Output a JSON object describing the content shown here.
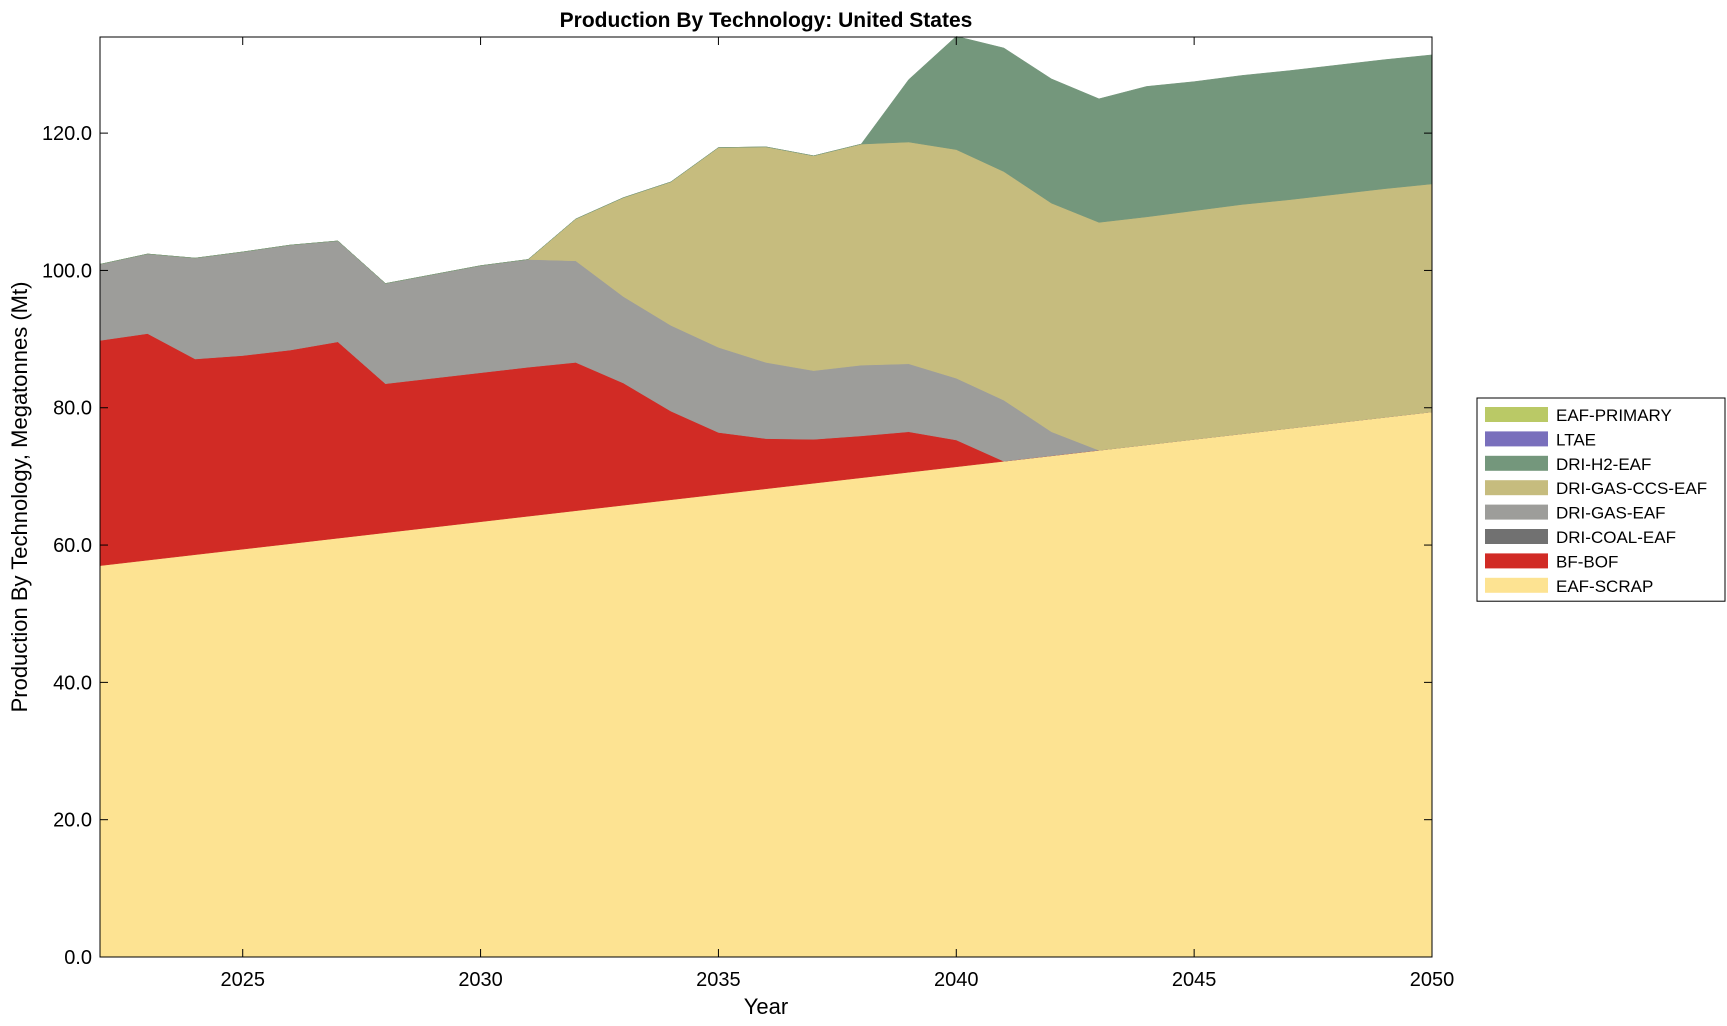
{
  "chart_data": {
    "type": "area",
    "stacked": true,
    "title": "Production By Technology: United States",
    "xlabel": "Year",
    "ylabel": "Production By Technology, Megatonnes (Mt)",
    "xlim": [
      2022,
      2050
    ],
    "ylim": [
      0,
      134
    ],
    "x_ticks": [
      2025,
      2030,
      2035,
      2040,
      2045,
      2050
    ],
    "y_ticks": [
      0,
      20,
      40,
      60,
      80,
      100,
      120
    ],
    "y_tick_labels": [
      "0.0",
      "20.0",
      "40.0",
      "60.0",
      "80.0",
      "100.0",
      "120.0"
    ],
    "grid": false,
    "legend_position": "right",
    "x": [
      2022,
      2023,
      2024,
      2025,
      2026,
      2027,
      2028,
      2029,
      2030,
      2031,
      2032,
      2033,
      2034,
      2035,
      2036,
      2037,
      2038,
      2039,
      2040,
      2041,
      2042,
      2043,
      2044,
      2045,
      2046,
      2047,
      2048,
      2049,
      2050
    ],
    "series": [
      {
        "name": "EAF-SCRAP",
        "color": "#fde392",
        "values": [
          57.0,
          57.8,
          58.6,
          59.4,
          60.2,
          61.0,
          61.8,
          62.6,
          63.4,
          64.2,
          65.0,
          65.8,
          66.6,
          67.4,
          68.2,
          69.0,
          69.8,
          70.6,
          71.4,
          72.2,
          73.0,
          73.8,
          74.6,
          75.4,
          76.2,
          77.0,
          77.8,
          78.6,
          79.4
        ]
      },
      {
        "name": "BF-BOF",
        "color": "#d12b25",
        "values": [
          32.8,
          33.0,
          28.5,
          28.2,
          28.2,
          28.6,
          21.7,
          21.7,
          21.7,
          21.7,
          21.6,
          17.8,
          12.9,
          9.0,
          7.3,
          6.4,
          6.1,
          5.9,
          3.9,
          0.0,
          0.0,
          0.0,
          0.0,
          0.0,
          0.0,
          0.0,
          0.0,
          0.0,
          0.0
        ]
      },
      {
        "name": "DRI-COAL-EAF",
        "color": "#717171",
        "values": [
          0,
          0,
          0,
          0,
          0,
          0,
          0,
          0,
          0,
          0,
          0,
          0,
          0,
          0,
          0,
          0,
          0,
          0,
          0,
          0,
          0,
          0,
          0,
          0,
          0,
          0,
          0,
          0,
          0
        ]
      },
      {
        "name": "DRI-GAS-EAF",
        "color": "#9d9d9a",
        "values": [
          11.1,
          11.6,
          14.7,
          15.1,
          15.3,
          14.7,
          14.6,
          15.1,
          15.6,
          15.7,
          14.8,
          12.6,
          12.5,
          12.4,
          11.1,
          10.0,
          10.3,
          9.9,
          9.0,
          8.9,
          3.5,
          0.0,
          0.0,
          0.0,
          0.0,
          0.0,
          0.0,
          0.0,
          0.0
        ]
      },
      {
        "name": "DRI-GAS-CCS-EAF",
        "color": "#c6bc7e",
        "values": [
          0.0,
          0.0,
          0.0,
          0.0,
          0.0,
          0.0,
          0.0,
          0.0,
          0.0,
          0.0,
          6.1,
          14.4,
          20.9,
          29.1,
          31.4,
          31.3,
          32.2,
          32.3,
          33.3,
          33.3,
          33.3,
          33.2,
          33.2,
          33.3,
          33.4,
          33.3,
          33.3,
          33.3,
          33.2
        ]
      },
      {
        "name": "DRI-H2-EAF",
        "color": "#74977c",
        "values": [
          0.0,
          0.0,
          0.0,
          0.0,
          0.0,
          0.0,
          0.0,
          0.0,
          0.0,
          0.0,
          0.0,
          0.0,
          0.0,
          0.0,
          0.0,
          0.0,
          0.0,
          9.1,
          16.5,
          18.0,
          18.1,
          18.0,
          19.0,
          18.8,
          18.8,
          18.8,
          18.8,
          18.8,
          18.8
        ]
      },
      {
        "name": "LTAE",
        "color": "#796fbc",
        "values": [
          0,
          0,
          0,
          0,
          0,
          0,
          0,
          0,
          0,
          0,
          0,
          0,
          0,
          0,
          0,
          0,
          0,
          0,
          0,
          0,
          0,
          0,
          0,
          0,
          0,
          0,
          0,
          0,
          0
        ]
      },
      {
        "name": "EAF-PRIMARY",
        "color": "#bac966",
        "values": [
          0,
          0,
          0,
          0,
          0,
          0,
          0,
          0,
          0,
          0,
          0,
          0,
          0,
          0,
          0,
          0,
          0,
          0,
          0,
          0,
          0,
          0,
          0,
          0,
          0,
          0,
          0,
          0,
          0
        ]
      }
    ],
    "legend_order": [
      "EAF-PRIMARY",
      "LTAE",
      "DRI-H2-EAF",
      "DRI-GAS-CCS-EAF",
      "DRI-GAS-EAF",
      "DRI-COAL-EAF",
      "BF-BOF",
      "EAF-SCRAP"
    ]
  }
}
